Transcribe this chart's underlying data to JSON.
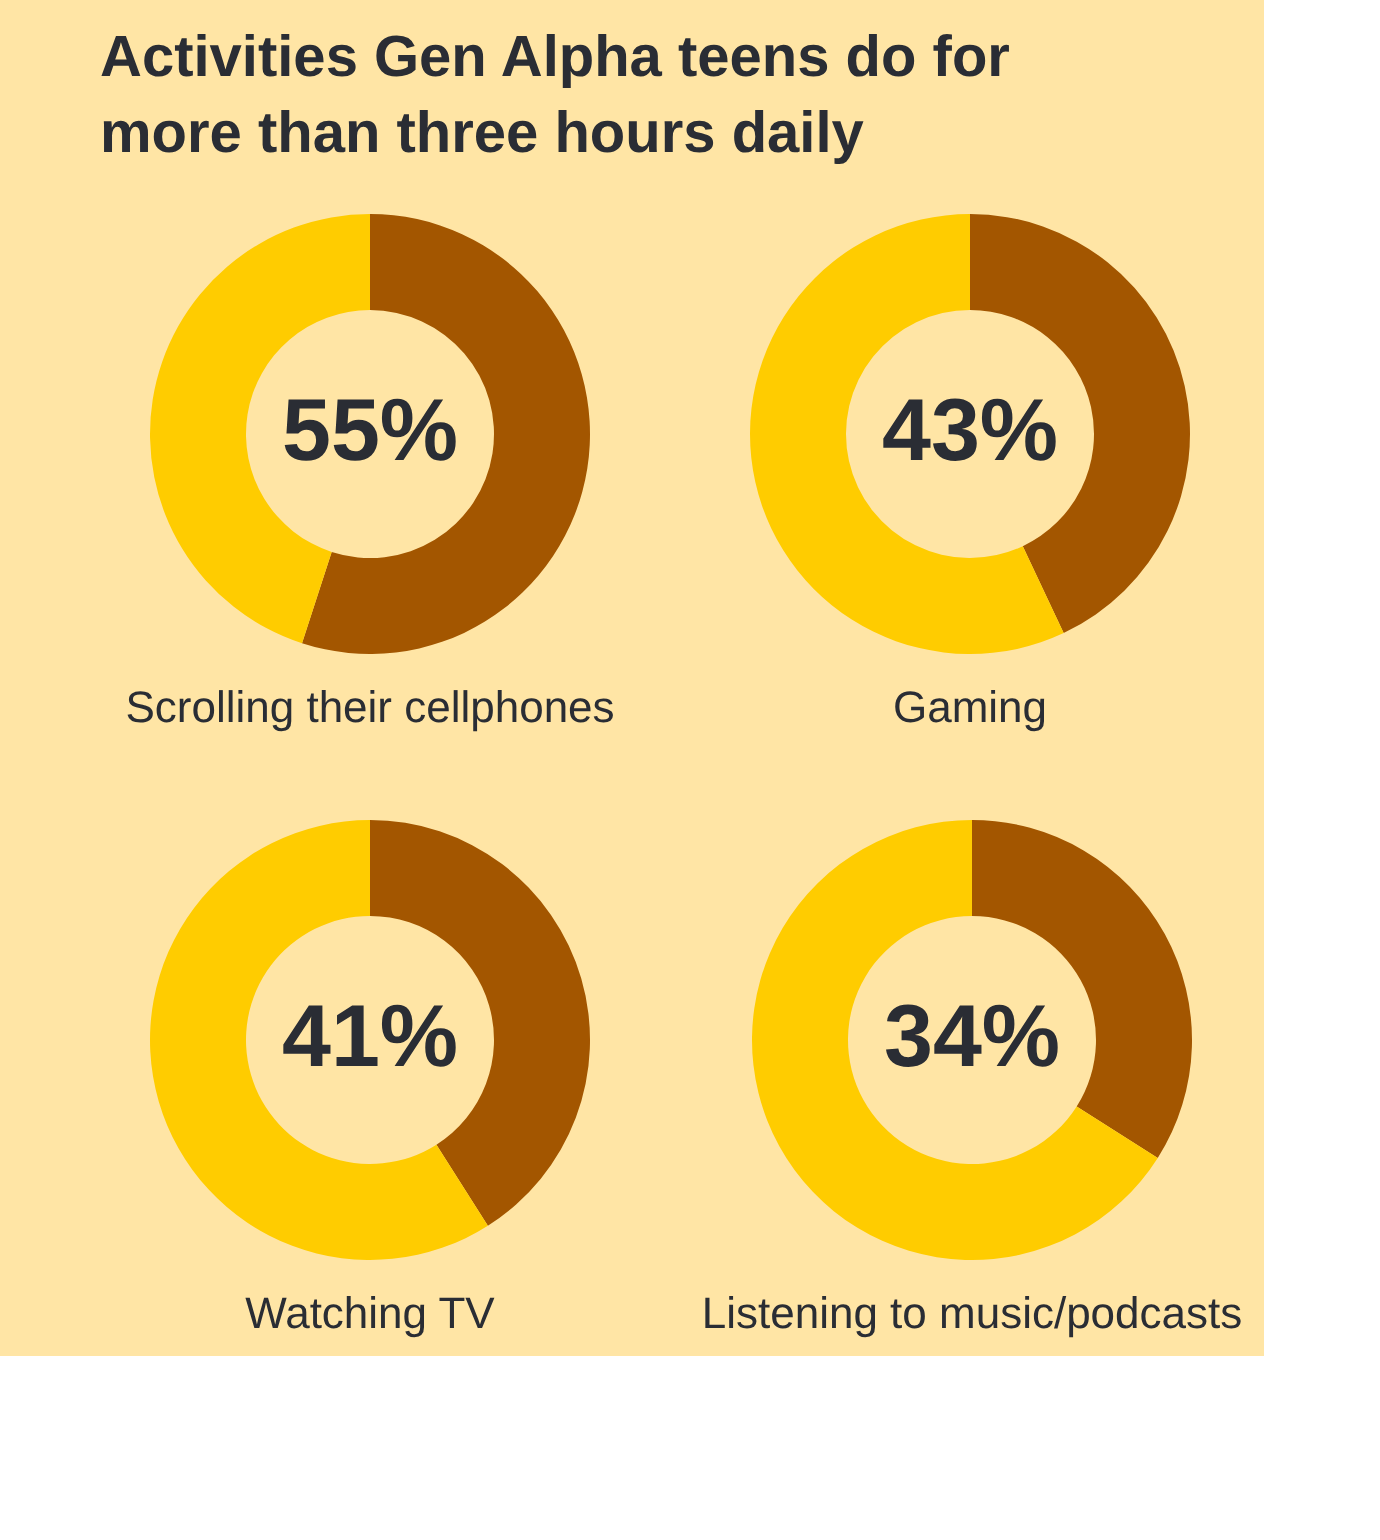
{
  "chart_data": [
    {
      "type": "donut",
      "title": "Activities Gen Alpha teens do for more than three hours daily",
      "xlabel": "Scrolling their cellphones",
      "categories": [
        null,
        null
      ],
      "values": [
        55,
        45
      ],
      "colors": [
        "#a35600",
        "#ffcc00"
      ],
      "value_labels": [
        "55%",
        null
      ]
    },
    {
      "type": "donut",
      "xlabel": "Gaming",
      "categories": [
        null,
        null
      ],
      "values": [
        43,
        57
      ],
      "colors": [
        "#a35600",
        "#ffcc00"
      ],
      "value_labels": [
        "43%",
        null
      ]
    },
    {
      "type": "donut",
      "xlabel": "Watching TV",
      "categories": [
        null,
        null
      ],
      "values": [
        41,
        59
      ],
      "colors": [
        "#a35600",
        "#ffcc00"
      ],
      "value_labels": [
        "41%",
        null
      ]
    },
    {
      "type": "donut",
      "xlabel": "Listening to music/podcasts",
      "categories": [
        null,
        null
      ],
      "values": [
        34,
        66
      ],
      "colors": [
        "#a35600",
        "#ffcc00"
      ],
      "value_labels": [
        "34%",
        null
      ]
    }
  ]
}
